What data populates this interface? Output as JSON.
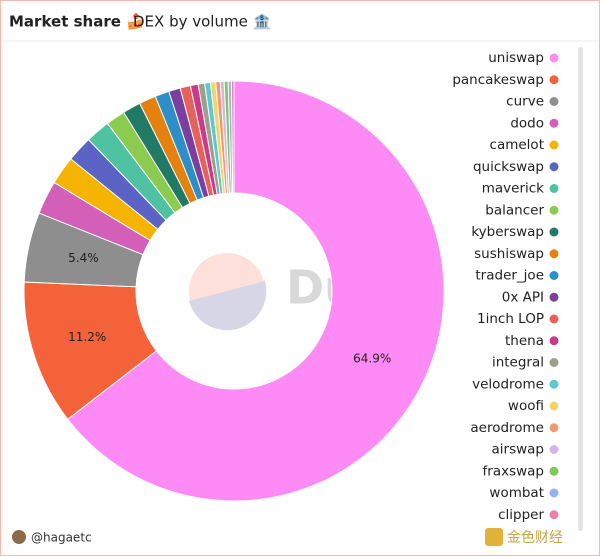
{
  "chart_data": {
    "type": "donut",
    "title": "Market share 🍰",
    "subtitle": "DEX by volume 🏦",
    "categories": [
      "uniswap",
      "pancakeswap",
      "curve",
      "dodo",
      "camelot",
      "quickswap",
      "maverick",
      "balancer",
      "kyberswap",
      "sushiswap",
      "trader_joe",
      "0x API",
      "1inch LOP",
      "thena",
      "integral",
      "velodrome",
      "woofi",
      "aerodrome",
      "airswap",
      "fraxswap",
      "wombat",
      "clipper"
    ],
    "values": [
      64.9,
      11.2,
      5.4,
      2.6,
      2.2,
      2.0,
      1.9,
      1.5,
      1.4,
      1.3,
      1.1,
      0.9,
      0.8,
      0.6,
      0.5,
      0.45,
      0.4,
      0.35,
      0.3,
      0.3,
      0.25,
      0.2
    ],
    "value_labels": [
      "64.9%",
      "11.2%",
      "5.4%",
      null,
      null,
      null,
      null,
      null,
      null,
      null,
      null,
      null,
      null,
      null,
      null,
      null,
      null,
      null,
      null,
      null,
      null,
      null
    ],
    "colors": [
      "#fd8af5",
      "#f4623a",
      "#8e8e8e",
      "#d35fb8",
      "#f4b400",
      "#5b63c4",
      "#4fc3a1",
      "#8bcb4f",
      "#217a66",
      "#e5820f",
      "#2c8fc9",
      "#7b3fa0",
      "#e8605a",
      "#cc3a87",
      "#9aa08a",
      "#5ec8d0",
      "#f5d36b",
      "#f09b6f",
      "#d9b3f0",
      "#7cc95a",
      "#93b4f0",
      "#f07fa8"
    ],
    "legend": "right"
  },
  "watermark": "Dune",
  "footer": {
    "author": "@hagaetc",
    "source": "金色财经"
  }
}
